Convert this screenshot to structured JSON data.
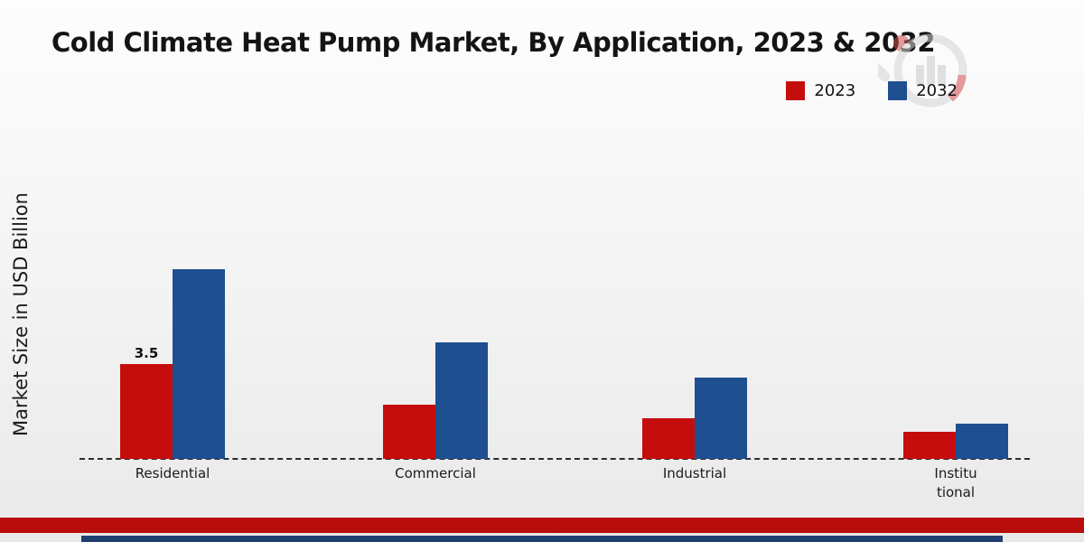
{
  "page": {
    "title": "Cold Climate Heat Pump Market, By Application, 2023 & 2032"
  },
  "chart_data": {
    "type": "bar",
    "title": "Cold Climate Heat Pump Market, By Application, 2023 & 2032",
    "ylabel": "Market Size in USD Billion",
    "xlabel": "",
    "categories": [
      "Residential",
      "Commercial",
      "Industrial",
      "Institutional"
    ],
    "tick_labels": [
      "Residential",
      "Commercial",
      "Industrial",
      "Institu\ntional"
    ],
    "series": [
      {
        "name": "2023",
        "color": "#c50d0d",
        "values": [
          3.5,
          2.0,
          1.5,
          1.0
        ]
      },
      {
        "name": "2032",
        "color": "#1d4f91",
        "values": [
          7.0,
          4.3,
          3.0,
          1.3
        ]
      }
    ],
    "data_labels": [
      {
        "series_index": 0,
        "category_index": 0,
        "text": "3.5"
      }
    ],
    "ylim": [
      0,
      8
    ],
    "grid": false,
    "legend_position": "top-right",
    "axis_line_style": "dashed"
  },
  "colors": {
    "series_2023": "#c50d0d",
    "series_2032": "#1d4f91",
    "footer_band": "#b90d0d",
    "footer_line": "#20406f",
    "axis_line": "#2e2e2e"
  },
  "branding": {
    "watermark": "bar-chart-magnifier-logo"
  }
}
